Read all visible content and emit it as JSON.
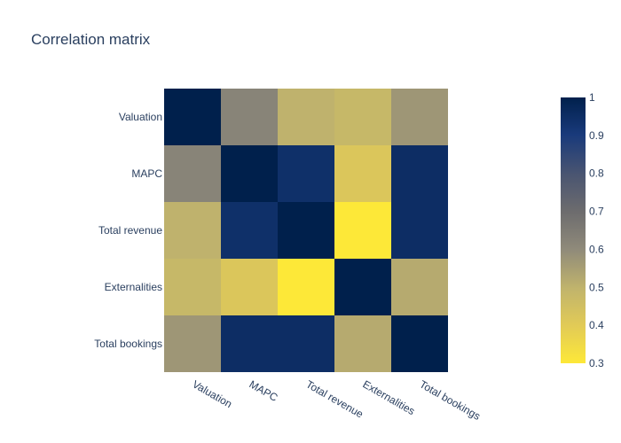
{
  "chart_data": {
    "type": "heatmap",
    "title": "Correlation matrix",
    "x_categories": [
      "Valuation",
      "MAPC",
      "Total revenue",
      "Externalities",
      "Total bookings"
    ],
    "y_categories": [
      "Valuation",
      "MAPC",
      "Total revenue",
      "Externalities",
      "Total bookings"
    ],
    "z": [
      [
        1.0,
        0.62,
        0.5,
        0.48,
        0.57
      ],
      [
        0.62,
        1.0,
        0.94,
        0.42,
        0.95
      ],
      [
        0.5,
        0.94,
        1.0,
        0.3,
        0.95
      ],
      [
        0.48,
        0.42,
        0.3,
        1.0,
        0.52
      ],
      [
        0.57,
        0.95,
        0.95,
        0.52,
        1.0
      ]
    ],
    "zmin": 0.3,
    "zmax": 1.0,
    "colorscale": "cividis-reversed",
    "colorbar_ticks": [
      "0.3",
      "0.4",
      "0.5",
      "0.6",
      "0.7",
      "0.8",
      "0.9",
      "1"
    ]
  }
}
